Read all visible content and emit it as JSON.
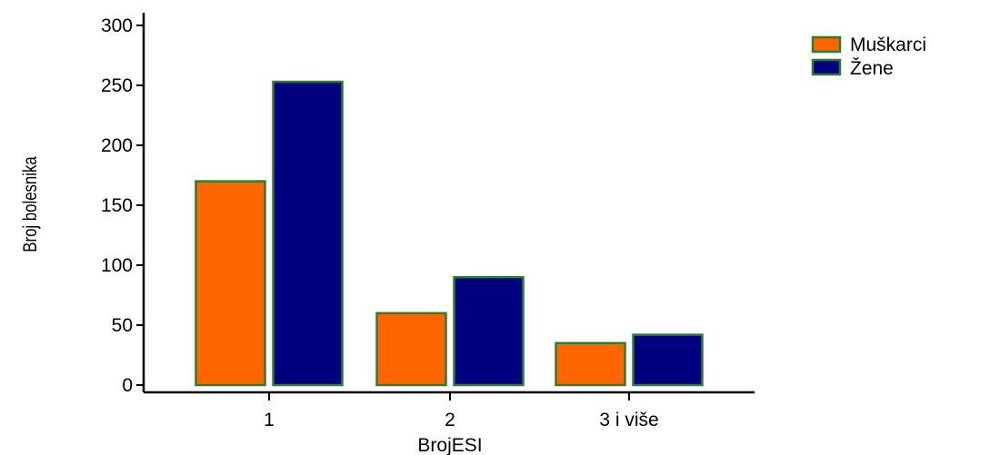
{
  "chart_data": {
    "type": "bar",
    "categories": [
      "1",
      "2",
      "3 i više"
    ],
    "series": [
      {
        "name": "Muškarci",
        "values": [
          170,
          60,
          35
        ],
        "color": "#ff6600"
      },
      {
        "name": "Žene",
        "values": [
          253,
          90,
          42
        ],
        "color": "#000080"
      }
    ],
    "xlabel": "BrojESI",
    "ylabel": "Broj bolesnika",
    "ylim": [
      0,
      300
    ],
    "yticks": [
      "0",
      "50",
      "100",
      "150",
      "200",
      "250",
      "300"
    ],
    "grid": false,
    "legend_position": "top-right",
    "bar_border_color": "#2e7d32"
  }
}
